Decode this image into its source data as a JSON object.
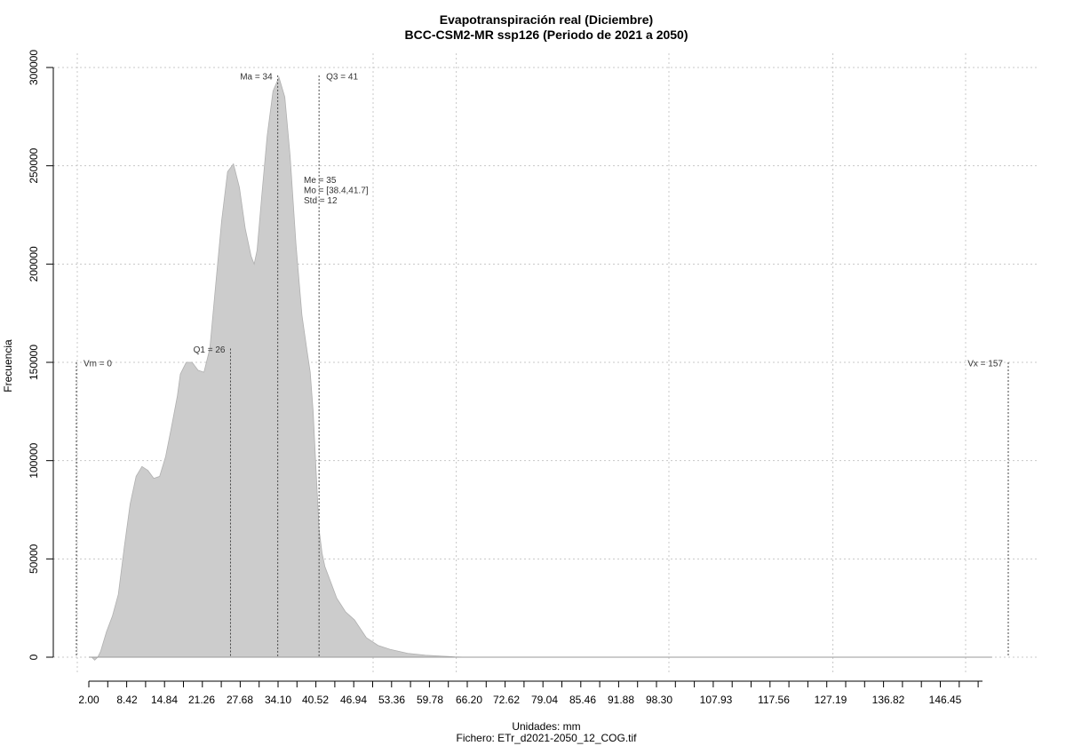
{
  "chart_data": {
    "type": "area",
    "title": "Evapotranspiración real (Diciembre)",
    "subtitle": "BCC-CSM2-MR ssp126 (Periodo de 2021 a 2050)",
    "xlabel": "Unidades: mm",
    "ylabel": "Frecuencia",
    "footer": "Fichero: ETr_d2021-2050_12_COG.tif",
    "xlim": [
      0,
      160
    ],
    "ylim": [
      0,
      300000
    ],
    "grid": true,
    "x_tick_labels": [
      "2.00",
      "8.42",
      "14.84",
      "21.26",
      "27.68",
      "34.10",
      "40.52",
      "46.94",
      "53.36",
      "59.78",
      "66.20",
      "72.62",
      "79.04",
      "85.46",
      "91.88",
      "98.30",
      "107.93",
      "117.56",
      "127.19",
      "136.82",
      "146.45"
    ],
    "y_ticks": [
      0,
      50000,
      100000,
      150000,
      200000,
      250000,
      300000
    ],
    "y_tick_labels": [
      "0",
      "50000",
      "100000",
      "150000",
      "200000",
      "250000",
      "300000"
    ],
    "x": [
      2.0,
      2.5,
      3.0,
      3.5,
      4.0,
      4.5,
      5.0,
      6.0,
      7.0,
      8.0,
      9.0,
      10.0,
      11.0,
      12.0,
      13.0,
      14.0,
      15.0,
      16.0,
      17.0,
      17.5,
      18.5,
      19.5,
      20.5,
      21.5,
      22.5,
      23.5,
      24.5,
      25.5,
      26.5,
      27.5,
      28.5,
      29.5,
      30.0,
      30.5,
      31.3,
      32.2,
      33.2,
      34.2,
      35.2,
      36.1,
      37.1,
      38.1,
      39.0,
      39.5,
      40.0,
      40.5,
      41.0,
      41.5,
      42.0,
      43.0,
      44.0,
      45.5,
      47.0,
      49.0,
      51.0,
      53.0,
      56.0,
      59.0,
      62.0,
      64.0,
      66.0,
      68.0,
      70.0,
      72.0,
      74.0,
      76.0,
      78.0,
      80.0,
      83.0,
      86.0,
      90.0,
      100.0,
      120.0,
      140.0,
      155.0
    ],
    "y": [
      0,
      0,
      0,
      0,
      0,
      0,
      0,
      0,
      0,
      0,
      0,
      0,
      0,
      0,
      0,
      0,
      0,
      0,
      0,
      0,
      0,
      0,
      0,
      0,
      0,
      0,
      0,
      0,
      0,
      0,
      0,
      0,
      0,
      0,
      0,
      0,
      0,
      0,
      0,
      0,
      0,
      0,
      0,
      0,
      0,
      0,
      0,
      0,
      0,
      0,
      0,
      0,
      0,
      0,
      0,
      0,
      0,
      0,
      0,
      0,
      0,
      0,
      0,
      0,
      0,
      0,
      0,
      0,
      0,
      0,
      0,
      0,
      0,
      0,
      0
    ],
    "density": [
      0,
      0,
      -1500,
      0,
      3000,
      8000,
      13000,
      21000,
      32000,
      56000,
      78000,
      92000,
      97000,
      95000,
      91000,
      92000,
      102000,
      117000,
      133000,
      144000,
      150000,
      150000,
      146000,
      145000,
      157000,
      190000,
      222000,
      247000,
      251000,
      239000,
      218000,
      204000,
      200000,
      207000,
      235000,
      265000,
      288000,
      295000,
      285000,
      255000,
      210000,
      174000,
      155000,
      145000,
      125000,
      95000,
      65000,
      53000,
      46000,
      38000,
      30000,
      23000,
      19000,
      10000,
      6000,
      4000,
      2000,
      1000,
      500,
      200,
      0,
      0,
      0,
      0,
      0,
      0,
      0,
      0,
      0,
      0,
      0,
      0,
      0,
      0,
      0
    ],
    "series": [
      {
        "name": "",
        "fill": "#cccccc"
      }
    ],
    "markers": [
      {
        "label": "Vm = 0",
        "value": 0,
        "line_top": 150000,
        "text_y": 148000,
        "align": "start"
      },
      {
        "label": "Q1 = 26",
        "value": 26,
        "line_top": 157000,
        "text_y": 155000,
        "align": "end"
      },
      {
        "label": "Ma = 34",
        "value": 34,
        "line_top": 296000,
        "text_y": 294000,
        "align": "end"
      },
      {
        "label": "Q3 = 41",
        "value": 41,
        "line_top": 296000,
        "text_y": 294000,
        "align": "start"
      },
      {
        "label": "Vx = 157",
        "value": 157,
        "line_top": 150000,
        "text_y": 148000,
        "align": "end"
      }
    ],
    "stats": [
      "Me = 35",
      "Mo = [38.4,41.7]",
      "Std = 12"
    ]
  }
}
